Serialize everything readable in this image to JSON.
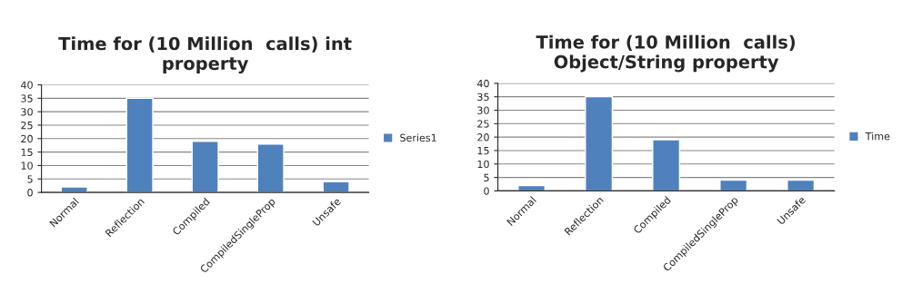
{
  "chart_data": [
    {
      "type": "bar",
      "title": "Time for (10 Million  calls) int\nproperty",
      "categories": [
        "Normal",
        "Reflection",
        "Compiled",
        "CompiledSingleProp",
        "Unsafe"
      ],
      "series": [
        {
          "name": "Series1",
          "color": "#4f81bd",
          "values": [
            2,
            35,
            19,
            18,
            4
          ]
        }
      ],
      "ylim": [
        0,
        40
      ],
      "yticks": [
        0,
        5,
        10,
        15,
        20,
        25,
        30,
        35,
        40
      ],
      "grid": "y",
      "legend": "right"
    },
    {
      "type": "bar",
      "title": "Time for (10 Million  calls)\nObject/String property",
      "categories": [
        "Normal",
        "Reflection",
        "Compiled",
        "CompiledSingleProp",
        "Unsafe"
      ],
      "series": [
        {
          "name": "Time",
          "color": "#4f81bd",
          "values": [
            2,
            35,
            19,
            4,
            4
          ]
        }
      ],
      "ylim": [
        0,
        40
      ],
      "yticks": [
        0,
        5,
        10,
        15,
        20,
        25,
        30,
        35,
        40
      ],
      "grid": "y",
      "legend": "right"
    }
  ]
}
